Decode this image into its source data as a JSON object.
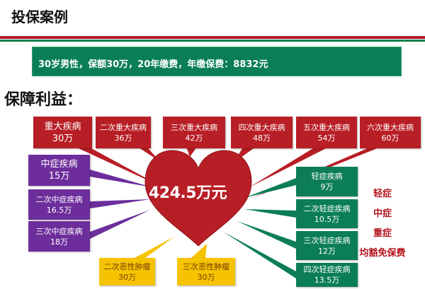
{
  "header": {
    "title": "投保案例"
  },
  "banner": {
    "text": "30岁男性，保额30万，20年缴费，年缴保费：8832元"
  },
  "section": {
    "title": "保障利益："
  },
  "total": "424.5万元",
  "major": [
    {
      "name": "重大疾病",
      "amount": "30万"
    },
    {
      "name": "二次重大疾病",
      "amount": "36万"
    },
    {
      "name": "三次重大疾病",
      "amount": "42万"
    },
    {
      "name": "四次重大疾病",
      "amount": "48万"
    },
    {
      "name": "五次重大疾病",
      "amount": "54万"
    },
    {
      "name": "六次重大疾病",
      "amount": "60万"
    }
  ],
  "moderate": [
    {
      "name": "中症疾病",
      "amount": "15万"
    },
    {
      "name": "二次中症疾病",
      "amount": "16.5万"
    },
    {
      "name": "三次中症疾病",
      "amount": "18万"
    }
  ],
  "mild": [
    {
      "name": "轻症疾病",
      "amount": "9万"
    },
    {
      "name": "二次轻症疾病",
      "amount": "10.5万"
    },
    {
      "name": "三次轻症疾病",
      "amount": "12万"
    },
    {
      "name": "四次轻症疾病",
      "amount": "13.5万"
    }
  ],
  "cancer": [
    {
      "name": "二次恶性肿瘤",
      "amount": "30万"
    },
    {
      "name": "三次恶性肿瘤",
      "amount": "30万"
    }
  ],
  "waiver": [
    "轻症",
    "中症",
    "重症",
    "均豁免保费"
  ],
  "colors": {
    "major": "#b81e25",
    "moderate": "#6d2e9c",
    "mild": "#0c7e55",
    "cancer": "#f6c300",
    "accent": "#b3121c"
  }
}
